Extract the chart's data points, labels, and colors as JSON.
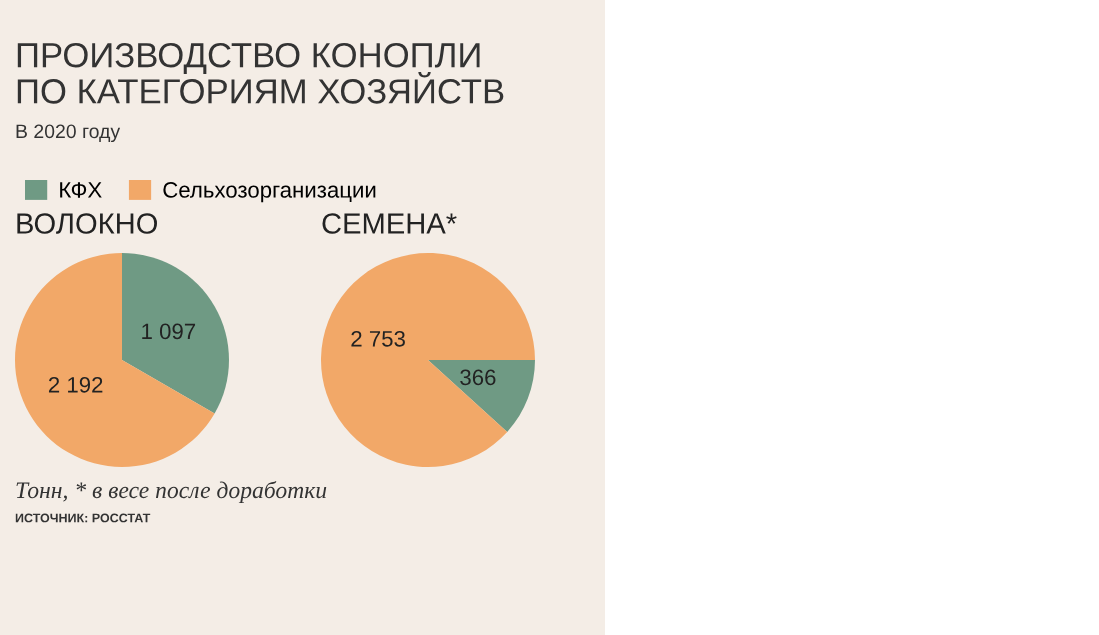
{
  "chart_data": [
    {
      "type": "pie",
      "title": "ВОЛОКНО",
      "legend": "top right",
      "categories": [
        "КФХ",
        "Сельхозорганизации"
      ],
      "values": [
        1097,
        2192
      ],
      "value_labels": [
        "1 097",
        "2 192"
      ],
      "colors": [
        "#6f9a84",
        "#f2a868"
      ],
      "annotations": [
        "ПРОИЗВОДСТВО КОНОПЛИ\nПО КАТЕГОРИЯМ ХОЗЯЙСТВ",
        "В 2020 году"
      ]
    },
    {
      "type": "pie",
      "title": "СЕМЕНА*",
      "categories": [
        null,
        null
      ],
      "values": [
        366,
        2753
      ],
      "value_labels": [
        "366",
        "2 753"
      ],
      "colors": [
        "#6f9a84",
        "#f2a868"
      ],
      "annotations": [
        "Тонн, * в весе после доработки",
        "ИСТОЧНИК: РОССТАТ"
      ]
    }
  ]
}
